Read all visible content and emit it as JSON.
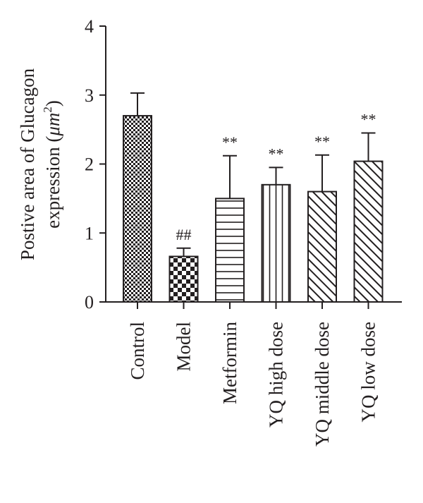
{
  "chart_data": {
    "type": "bar",
    "ylabel_line1": "Postive area of Glucagon",
    "ylabel_line2_text": "expression (",
    "ylabel_unit": "μm",
    "ylabel_unit_exp": "2",
    "ylabel_close": ")",
    "ylim": [
      0,
      4
    ],
    "yticks": [
      "0",
      "1",
      "2",
      "3",
      "4"
    ],
    "categories": [
      "Control",
      "Model",
      "Metformin",
      "YQ high dose",
      "YQ middle dose",
      "YQ low dose"
    ],
    "values": [
      2.7,
      0.66,
      1.5,
      1.7,
      1.6,
      2.04
    ],
    "errors": [
      0.33,
      0.12,
      0.62,
      0.25,
      0.53,
      0.41
    ],
    "annotations": [
      "",
      "##",
      "**",
      "**",
      "**",
      "**"
    ],
    "patterns": [
      "fine-checker",
      "coarse-checker",
      "horizontal-lines",
      "vertical-lines",
      "diagonal-lines",
      "diagonal-lines"
    ],
    "grid": false,
    "legend": "none",
    "color": "#231f20"
  }
}
